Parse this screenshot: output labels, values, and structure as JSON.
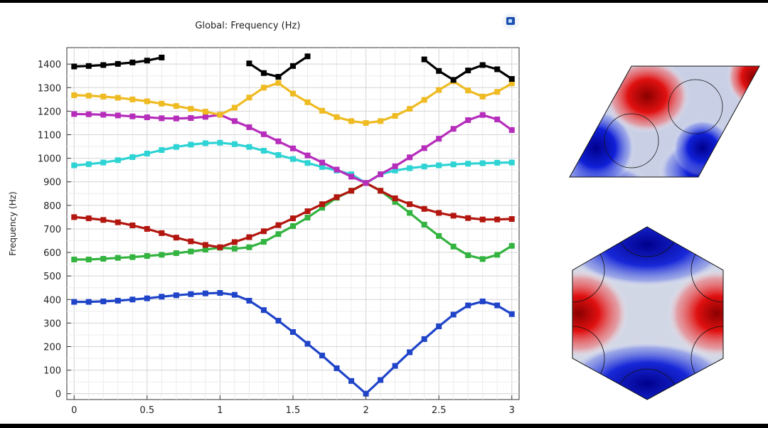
{
  "chart_data": {
    "type": "line",
    "title": "Global: Frequency (Hz)",
    "xlabel": "",
    "ylabel": "Frequency (Hz)",
    "xlim": [
      -0.05,
      3.05
    ],
    "ylim": [
      -25,
      1470
    ],
    "xticks": [
      "0",
      "0.5",
      "1",
      "1.5",
      "2",
      "2.5",
      "3"
    ],
    "xtick_values": [
      0,
      0.5,
      1,
      1.5,
      2,
      2.5,
      3
    ],
    "yticks": [
      "0",
      "100",
      "200",
      "300",
      "400",
      "500",
      "600",
      "700",
      "800",
      "900",
      "1000",
      "1100",
      "1200",
      "1300",
      "1400"
    ],
    "ytick_values": [
      0,
      100,
      200,
      300,
      400,
      500,
      600,
      700,
      800,
      900,
      1000,
      1100,
      1200,
      1300,
      1400
    ],
    "grid": true,
    "legend": "none",
    "x": [
      0,
      0.1,
      0.2,
      0.3,
      0.4,
      0.5,
      0.6,
      0.7,
      0.8,
      0.9,
      1.0,
      1.1,
      1.2,
      1.3,
      1.4,
      1.5,
      1.6,
      1.7,
      1.8,
      1.9,
      2.0,
      2.1,
      2.2,
      2.3,
      2.4,
      2.5,
      2.6,
      2.7,
      2.8,
      2.9,
      3.0
    ],
    "series": [
      {
        "color": "#1f44c8",
        "values": [
          390,
          390,
          392,
          395,
          400,
          405,
          412,
          418,
          423,
          426,
          428,
          420,
          395,
          355,
          310,
          262,
          212,
          162,
          108,
          54,
          0,
          58,
          118,
          176,
          232,
          286,
          336,
          375,
          392,
          375,
          338
        ]
      },
      {
        "color": "#33b33f",
        "values": [
          570,
          570,
          573,
          577,
          580,
          585,
          590,
          597,
          604,
          612,
          620,
          616,
          622,
          645,
          678,
          712,
          748,
          790,
          832,
          862,
          895,
          862,
          815,
          768,
          718,
          670,
          625,
          588,
          572,
          590,
          628
        ]
      },
      {
        "color": "#b3160f",
        "values": [
          750,
          745,
          738,
          728,
          715,
          700,
          682,
          663,
          647,
          632,
          622,
          644,
          665,
          690,
          716,
          745,
          775,
          805,
          835,
          862,
          895,
          862,
          830,
          805,
          785,
          768,
          756,
          746,
          740,
          740,
          742
        ]
      },
      {
        "color": "#2ed3d4",
        "values": [
          970,
          975,
          982,
          992,
          1005,
          1020,
          1035,
          1048,
          1058,
          1064,
          1066,
          1060,
          1048,
          1032,
          1014,
          997,
          980,
          963,
          948,
          932,
          895,
          932,
          948,
          958,
          965,
          970,
          974,
          977,
          979,
          981,
          982
        ]
      },
      {
        "color": "#b62dbb",
        "values": [
          1188,
          1187,
          1185,
          1182,
          1178,
          1174,
          1170,
          1169,
          1171,
          1176,
          1185,
          1158,
          1132,
          1102,
          1072,
          1042,
          1012,
          982,
          952,
          922,
          895,
          932,
          966,
          1004,
          1043,
          1083,
          1125,
          1162,
          1184,
          1165,
          1120
        ]
      },
      {
        "color": "#efbb22",
        "values": [
          1268,
          1266,
          1262,
          1257,
          1250,
          1242,
          1232,
          1222,
          1210,
          1198,
          1185,
          1215,
          1258,
          1300,
          1320,
          1275,
          1238,
          1202,
          1175,
          1158,
          1150,
          1158,
          1180,
          1210,
          1248,
          1290,
          1327,
          1288,
          1262,
          1282,
          1318
        ]
      },
      {
        "color": "#000000",
        "values": [
          1390,
          1392,
          1396,
          1401,
          1407,
          1415,
          1428,
          null,
          null,
          null,
          null,
          null,
          1403,
          1362,
          1346,
          1392,
          1433,
          null,
          null,
          null,
          null,
          null,
          null,
          null,
          1420,
          1371,
          1333,
          1373,
          1396,
          1378,
          1337
        ]
      }
    ]
  },
  "mode_plots": {
    "top_label": "",
    "bottom_label": ""
  }
}
